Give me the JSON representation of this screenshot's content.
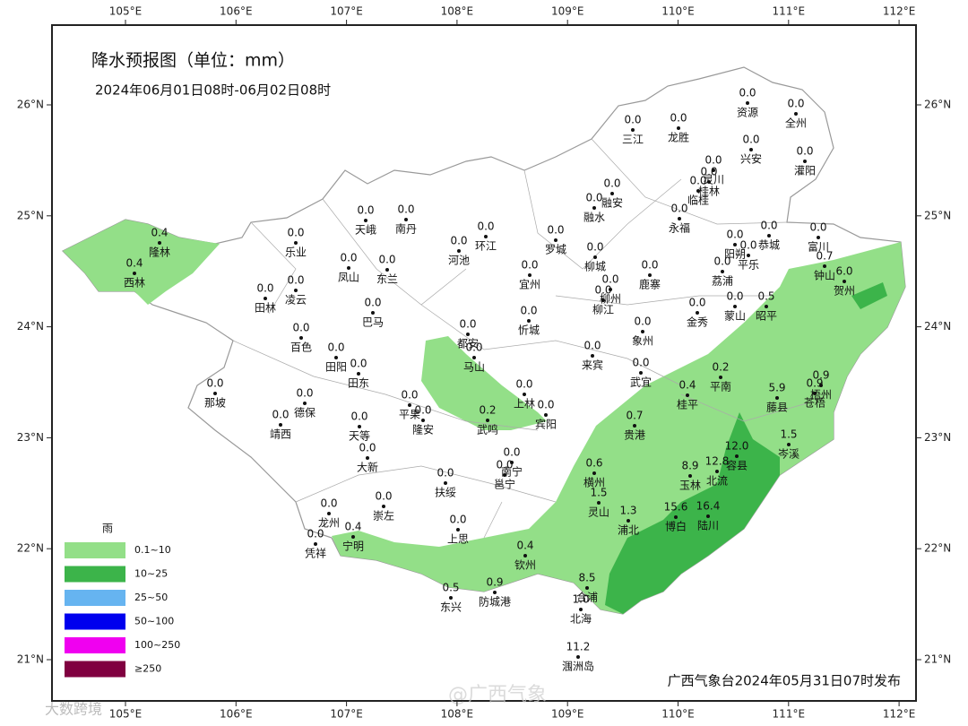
{
  "header": {
    "title": "降水预报图（单位：mm）",
    "subtitle": "2024年06月01日08时-06月02日08时"
  },
  "axes": {
    "lon": [
      "105°E",
      "106°E",
      "107°E",
      "108°E",
      "109°E",
      "110°E",
      "111°E",
      "112°E"
    ],
    "lat": [
      "26°N",
      "25°N",
      "24°N",
      "23°N",
      "22°N",
      "21°N"
    ]
  },
  "stations": [
    {
      "name": "隆林",
      "value": "0.4"
    },
    {
      "name": "西林",
      "value": "0.4"
    },
    {
      "name": "田林",
      "value": "0.0"
    },
    {
      "name": "乐业",
      "value": "0.0"
    },
    {
      "name": "凌云",
      "value": "0.0"
    },
    {
      "name": "天峨",
      "value": "0.0"
    },
    {
      "name": "南丹",
      "value": "0.0"
    },
    {
      "name": "凤山",
      "value": "0.0"
    },
    {
      "name": "东兰",
      "value": "0.0"
    },
    {
      "name": "巴马",
      "value": "0.0"
    },
    {
      "name": "河池",
      "value": "0.0"
    },
    {
      "name": "环江",
      "value": "0.0"
    },
    {
      "name": "罗城",
      "value": "0.0"
    },
    {
      "name": "宜州",
      "value": "0.0"
    },
    {
      "name": "融水",
      "value": "0.0"
    },
    {
      "name": "融安",
      "value": "0.0"
    },
    {
      "name": "三江",
      "value": "0.0"
    },
    {
      "name": "龙胜",
      "value": "0.0"
    },
    {
      "name": "资源",
      "value": "0.0"
    },
    {
      "name": "全州",
      "value": "0.0"
    },
    {
      "name": "兴安",
      "value": "0.0"
    },
    {
      "name": "灌阳",
      "value": "0.0"
    },
    {
      "name": "灵川",
      "value": "0.0"
    },
    {
      "name": "桂林",
      "value": "0.0"
    },
    {
      "name": "临桂",
      "value": "0.0"
    },
    {
      "name": "永福",
      "value": "0.0"
    },
    {
      "name": "柳城",
      "value": "0.0"
    },
    {
      "name": "鹿寨",
      "value": "0.0"
    },
    {
      "name": "柳州",
      "value": "0.0"
    },
    {
      "name": "柳江",
      "value": "0.0"
    },
    {
      "name": "阳朔",
      "value": "0.0"
    },
    {
      "name": "恭城",
      "value": "0.0"
    },
    {
      "name": "富川",
      "value": "0.0"
    },
    {
      "name": "平乐",
      "value": "0.0"
    },
    {
      "name": "荔浦",
      "value": "0.0"
    },
    {
      "name": "钟山",
      "value": "0.7"
    },
    {
      "name": "贺州",
      "value": "6.0"
    },
    {
      "name": "昭平",
      "value": "0.5"
    },
    {
      "name": "蒙山",
      "value": "0.0"
    },
    {
      "name": "金秀",
      "value": "0.0"
    },
    {
      "name": "象州",
      "value": "0.0"
    },
    {
      "name": "来宾",
      "value": "0.0"
    },
    {
      "name": "武宜",
      "value": "0.0"
    },
    {
      "name": "忻城",
      "value": "0.0"
    },
    {
      "name": "都安",
      "value": "0.0"
    },
    {
      "name": "马山",
      "value": "0.0"
    },
    {
      "name": "上林",
      "value": "0.0"
    },
    {
      "name": "宾阳",
      "value": "0.0"
    },
    {
      "name": "百色",
      "value": "0.0"
    },
    {
      "name": "田阳",
      "value": "0.0"
    },
    {
      "name": "田东",
      "value": "0.0"
    },
    {
      "name": "那坡",
      "value": "0.0"
    },
    {
      "name": "德保",
      "value": "0.0"
    },
    {
      "name": "靖西",
      "value": "0.0"
    },
    {
      "name": "平果",
      "value": "0.0"
    },
    {
      "name": "隆安",
      "value": "0.0"
    },
    {
      "name": "天等",
      "value": "0.0"
    },
    {
      "name": "大新",
      "value": "0.0"
    },
    {
      "name": "武鸣",
      "value": "0.2"
    },
    {
      "name": "南宁",
      "value": "0.0"
    },
    {
      "name": "邕宁",
      "value": "0.0"
    },
    {
      "name": "扶绥",
      "value": "0.0"
    },
    {
      "name": "崇左",
      "value": "0.0"
    },
    {
      "name": "龙州",
      "value": "0.0"
    },
    {
      "name": "宁明",
      "value": "0.4"
    },
    {
      "name": "凭祥",
      "value": "0.0"
    },
    {
      "name": "上思",
      "value": "0.0"
    },
    {
      "name": "防城港",
      "value": "0.9"
    },
    {
      "name": "东兴",
      "value": "0.5"
    },
    {
      "name": "钦州",
      "value": "0.4"
    },
    {
      "name": "合浦",
      "value": "8.5"
    },
    {
      "name": "北海",
      "value": "1.0"
    },
    {
      "name": "涠洲岛",
      "value": "11.2"
    },
    {
      "name": "灵山",
      "value": "1.5"
    },
    {
      "name": "浦北",
      "value": "1.3"
    },
    {
      "name": "横州",
      "value": "0.6"
    },
    {
      "name": "贵港",
      "value": "0.7"
    },
    {
      "name": "桂平",
      "value": "0.4"
    },
    {
      "name": "平南",
      "value": "0.2"
    },
    {
      "name": "藤县",
      "value": "5.9"
    },
    {
      "name": "梧州",
      "value": "0.9"
    },
    {
      "name": "苍梧",
      "value": "0.9"
    },
    {
      "name": "岑溪",
      "value": "1.5"
    },
    {
      "name": "容县",
      "value": "12.0"
    },
    {
      "name": "北流",
      "value": "12.8"
    },
    {
      "name": "玉林",
      "value": "8.9"
    },
    {
      "name": "博白",
      "value": "15.6"
    },
    {
      "name": "陆川",
      "value": "16.4"
    }
  ],
  "legend": {
    "title": "雨",
    "items": [
      "0.1~10",
      "10~25",
      "25~50",
      "50~100",
      "100~250",
      "≥250"
    ]
  },
  "footer": "广西气象台2024年05月31日07时发布",
  "watermarks": [
    "大数跨境",
    "@广西气象"
  ]
}
